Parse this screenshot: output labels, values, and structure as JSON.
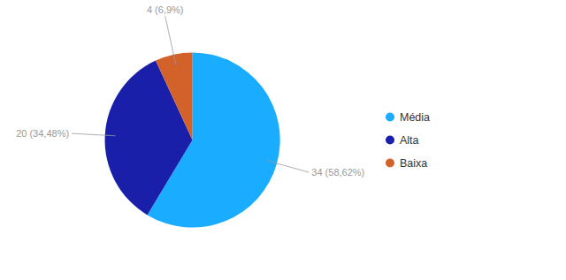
{
  "chart_data": {
    "type": "pie",
    "categories": [
      "Média",
      "Alta",
      "Baixa"
    ],
    "values": [
      34,
      20,
      4
    ],
    "value_labels": [
      "34 (58,62%)",
      "20 (34,48%)",
      "4 (6,9%)"
    ],
    "colors": [
      "#1AADFF",
      "#1A1FAA",
      "#D2622A"
    ],
    "data_labels": true,
    "legend": "right"
  }
}
